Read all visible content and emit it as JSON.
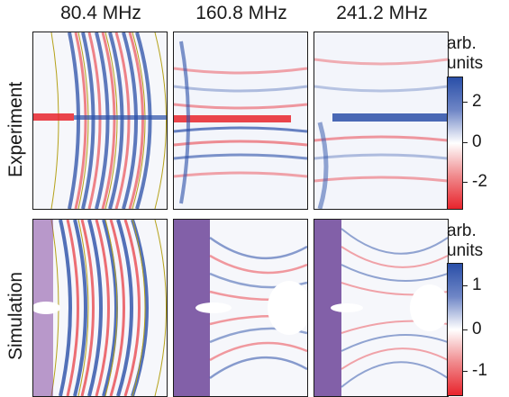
{
  "columns": [
    "80.4 MHz",
    "160.8 MHz",
    "241.2 MHz"
  ],
  "rows": [
    "Experiment",
    "Simulation"
  ],
  "colorbars": [
    {
      "label_line1": "arb.",
      "label_line2": "units",
      "ticks": [
        "2",
        "0",
        "-2"
      ]
    },
    {
      "label_line1": "arb.",
      "label_line2": "units",
      "ticks": [
        "1",
        "0",
        "-1"
      ]
    }
  ],
  "colors": {
    "positive": "#2a4fa8",
    "zero": "#ffffff",
    "negative": "#e8242c",
    "contour": "#b5a21a"
  }
}
